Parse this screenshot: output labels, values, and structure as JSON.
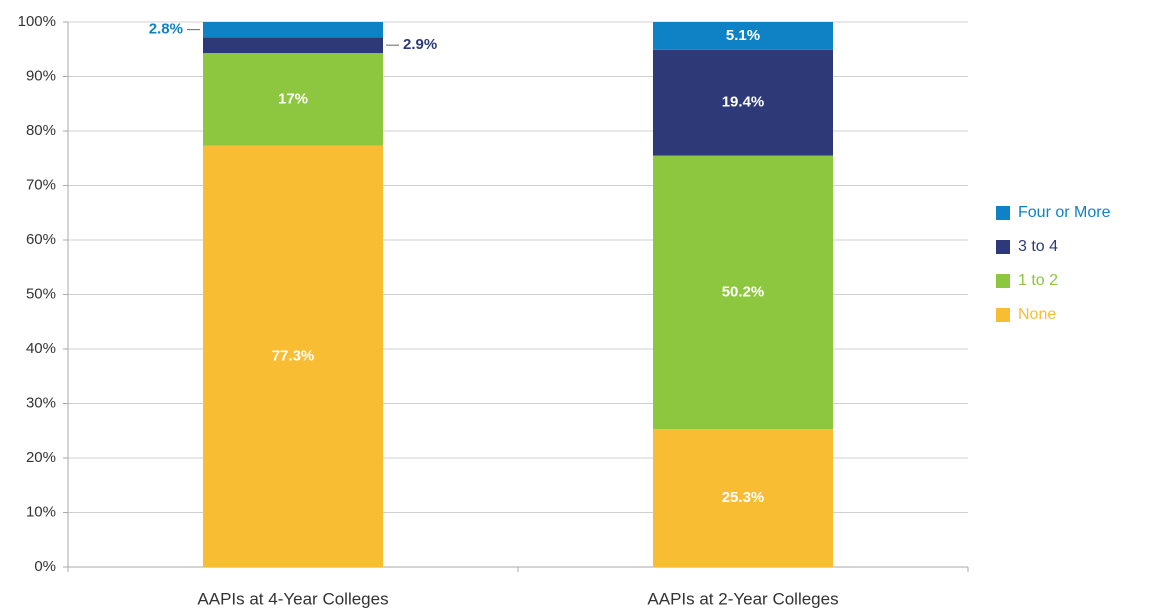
{
  "chart_data": {
    "type": "stacked_bar",
    "categories": [
      "AAPIs at 4-Year Colleges",
      "AAPIs at 2-Year Colleges"
    ],
    "series": [
      {
        "name": "None",
        "color": "#f9bd33",
        "values": [
          77.3,
          25.3
        ],
        "value_labels": [
          "77.3%",
          "25.3%"
        ]
      },
      {
        "name": "1 to 2",
        "color": "#8dc63f",
        "values": [
          17,
          50.2
        ],
        "value_labels": [
          "17%",
          "50.2%"
        ]
      },
      {
        "name": "3 to 4",
        "color": "#2e3a78",
        "values": [
          2.9,
          19.4
        ],
        "value_labels": [
          "2.9%",
          "19.4%"
        ]
      },
      {
        "name": "Four or More",
        "color": "#0f82c5",
        "values": [
          2.8,
          5.1
        ],
        "value_labels": [
          "2.8%",
          "5.1%"
        ]
      }
    ],
    "ylim": [
      0,
      100
    ],
    "yticks": [
      {
        "value": 0,
        "label": "0%"
      },
      {
        "value": 10,
        "label": "10%"
      },
      {
        "value": 20,
        "label": "20%"
      },
      {
        "value": 30,
        "label": "30%"
      },
      {
        "value": 40,
        "label": "40%"
      },
      {
        "value": 50,
        "label": "50%"
      },
      {
        "value": 60,
        "label": "60%"
      },
      {
        "value": 70,
        "label": "70%"
      },
      {
        "value": 80,
        "label": "80%"
      },
      {
        "value": 90,
        "label": "90%"
      },
      {
        "value": 100,
        "label": "100%"
      }
    ],
    "grid": true,
    "legend": "right"
  }
}
